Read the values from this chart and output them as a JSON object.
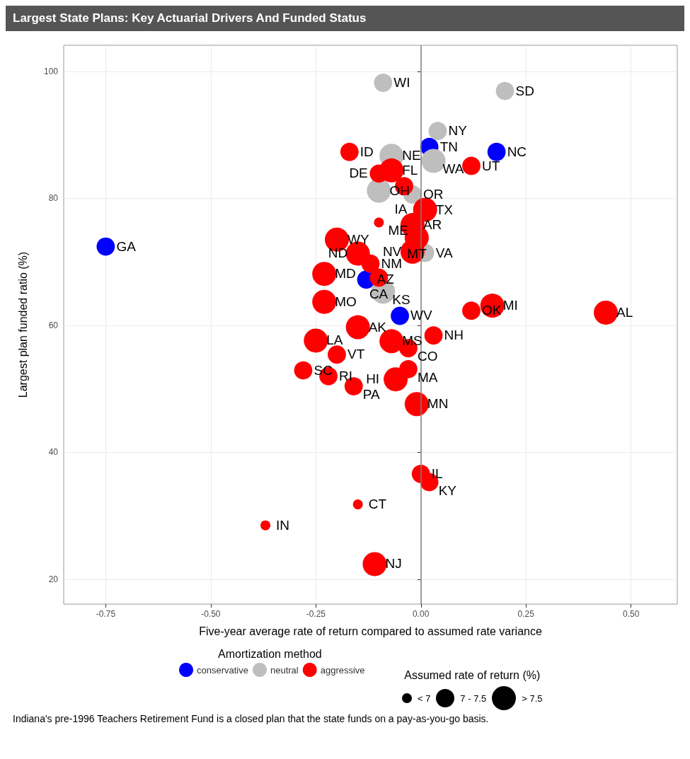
{
  "chart_data": {
    "type": "bubble",
    "title": "Largest State Plans: Key Actuarial Drivers And Funded Status",
    "xlabel": "Five-year average rate of return compared to assumed rate variance",
    "ylabel": "Largest plan funded ratio (%)",
    "legend_title": "Amortization method",
    "legend": "bottom",
    "size_legend": [
      {
        "value": 0.17,
        "label": "< 7"
      },
      {
        "value": 0.58,
        "label": "7 - 7.5"
      },
      {
        "value": 1,
        "label": "> 7.5"
      }
    ],
    "xlim": [
      -0.85,
      0.61
    ],
    "ylim": [
      16.1,
      104.1
    ],
    "xticks": [
      {
        "value": -0.75,
        "label": "-0.75"
      },
      {
        "value": -0.5,
        "label": "-0.50"
      },
      {
        "value": -0.25,
        "label": "-0.25"
      },
      {
        "value": 0,
        "label": "0.00"
      },
      {
        "value": 0.25,
        "label": "0.25"
      },
      {
        "value": 0.5,
        "label": "0.50"
      }
    ],
    "yticks": [
      20,
      40,
      60,
      80,
      100
    ],
    "grid": true,
    "marker": "circle",
    "ref_lines": [
      {
        "axis": "x",
        "value": 0,
        "color": "#7f7f7f"
      }
    ],
    "series": [
      {
        "name": "conservative",
        "color": "#0000ff",
        "x": [
          -0.75,
          0.02,
          0.18,
          -0.13,
          -0.05
        ],
        "values": [
          72.4,
          88.1,
          87.3,
          67.2,
          61.5
        ],
        "sizes": [
          0.58,
          0.58,
          0.58,
          0.58,
          0.58
        ]
      },
      {
        "name": "neutral",
        "color": "#bebebe",
        "x": [
          -0.09,
          0.2,
          0.04,
          -0.07,
          0.03,
          -0.1,
          -0.02,
          0.01,
          -0.09
        ],
        "values": [
          98.2,
          96.9,
          90.6,
          86.7,
          85.9,
          81.2,
          80.6,
          71.4,
          65.3
        ],
        "sizes": [
          0.58,
          0.58,
          0.58,
          1,
          1,
          1,
          0.58,
          0.58,
          1
        ]
      },
      {
        "name": "aggressive",
        "color": "#ff0000",
        "x": [
          -0.17,
          0.12,
          -0.07,
          -0.1,
          -0.04,
          0.01,
          -0.02,
          -0.1,
          -0.01,
          -0.02,
          -0.2,
          -0.15,
          -0.23,
          -0.12,
          -0.1,
          -0.23,
          0.17,
          0.12,
          0.44,
          -0.15,
          -0.25,
          -0.07,
          0.03,
          -0.03,
          -0.03,
          -0.06,
          -0.2,
          -0.28,
          -0.22,
          -0.16,
          -0.01,
          0.0,
          0.02,
          -0.15,
          -0.37,
          -0.11
        ],
        "values": [
          87.3,
          85.1,
          84.4,
          83.9,
          81.9,
          78.2,
          75.8,
          76.2,
          73.8,
          71.6,
          73.5,
          71.3,
          68.1,
          69.7,
          67.5,
          63.7,
          63.1,
          62.3,
          62.0,
          59.7,
          57.6,
          57.5,
          58.4,
          56.4,
          53.1,
          51.5,
          55.4,
          52.9,
          52.0,
          50.4,
          47.6,
          36.6,
          35.3,
          31.8,
          28.5,
          22.4
        ],
        "sizes": [
          0.58,
          0.58,
          1,
          0.58,
          0.58,
          1,
          1,
          0.17,
          1,
          1,
          1,
          1,
          1,
          0.58,
          0.58,
          1,
          1,
          0.58,
          1,
          1,
          1,
          1,
          0.58,
          0.58,
          0.58,
          1,
          0.58,
          0.58,
          0.58,
          0.58,
          1,
          0.58,
          0.58,
          0.17,
          0.17,
          1
        ]
      }
    ],
    "annotations": [
      {
        "text": "GA",
        "x": -0.75,
        "y": 72.4
      },
      {
        "text": "TN",
        "x": 0.02,
        "y": 88.1
      },
      {
        "text": "NC",
        "x": 0.18,
        "y": 87.3
      },
      {
        "text": "AZ",
        "x": -0.13,
        "y": 67.2
      },
      {
        "text": "WV",
        "x": -0.05,
        "y": 61.5
      },
      {
        "text": "WI",
        "x": -0.09,
        "y": 98.2
      },
      {
        "text": "SD",
        "x": 0.2,
        "y": 96.9
      },
      {
        "text": "NY",
        "x": 0.04,
        "y": 90.6
      },
      {
        "text": "NE",
        "x": -0.07,
        "y": 86.7
      },
      {
        "text": "WA",
        "x": 0.03,
        "y": 85.9
      },
      {
        "text": "OH",
        "x": -0.1,
        "y": 81.2
      },
      {
        "text": "OR",
        "x": -0.02,
        "y": 80.6
      },
      {
        "text": "VA",
        "x": 0.01,
        "y": 71.4
      },
      {
        "text": "KS",
        "x": -0.09,
        "y": 65.3
      },
      {
        "text": "ID",
        "x": -0.17,
        "y": 87.3
      },
      {
        "text": "UT",
        "x": 0.12,
        "y": 85.1
      },
      {
        "text": "FL",
        "x": -0.07,
        "y": 84.4
      },
      {
        "text": "DE",
        "x": -0.1,
        "y": 83.9
      },
      {
        "text": "IA",
        "x": -0.04,
        "y": 81.9
      },
      {
        "text": "TX",
        "x": 0.01,
        "y": 78.2
      },
      {
        "text": "AR",
        "x": -0.02,
        "y": 75.8
      },
      {
        "text": "ME",
        "x": -0.1,
        "y": 76.2
      },
      {
        "text": "MT",
        "x": -0.01,
        "y": 73.8
      },
      {
        "text": "NV",
        "x": -0.02,
        "y": 71.6
      },
      {
        "text": "WY",
        "x": -0.2,
        "y": 73.5
      },
      {
        "text": "ND",
        "x": -0.15,
        "y": 71.3
      },
      {
        "text": "MD",
        "x": -0.23,
        "y": 68.1
      },
      {
        "text": "NM",
        "x": -0.12,
        "y": 69.7
      },
      {
        "text": "CA",
        "x": -0.1,
        "y": 67.5
      },
      {
        "text": "MO",
        "x": -0.23,
        "y": 63.7
      },
      {
        "text": "MI",
        "x": 0.17,
        "y": 63.1
      },
      {
        "text": "OK",
        "x": 0.12,
        "y": 62.3
      },
      {
        "text": "AL",
        "x": 0.44,
        "y": 62.0
      },
      {
        "text": "AK",
        "x": -0.15,
        "y": 59.7
      },
      {
        "text": "LA",
        "x": -0.25,
        "y": 57.6
      },
      {
        "text": "MS",
        "x": -0.07,
        "y": 57.5
      },
      {
        "text": "NH",
        "x": 0.03,
        "y": 58.4
      },
      {
        "text": "CO",
        "x": -0.03,
        "y": 56.4
      },
      {
        "text": "MA",
        "x": -0.03,
        "y": 53.1
      },
      {
        "text": "HI",
        "x": -0.06,
        "y": 51.5
      },
      {
        "text": "VT",
        "x": -0.2,
        "y": 55.4
      },
      {
        "text": "SC",
        "x": -0.28,
        "y": 52.9
      },
      {
        "text": "RI",
        "x": -0.22,
        "y": 52.0
      },
      {
        "text": "PA",
        "x": -0.16,
        "y": 50.4
      },
      {
        "text": "MN",
        "x": -0.01,
        "y": 47.6
      },
      {
        "text": "IL",
        "x": 0.0,
        "y": 36.6
      },
      {
        "text": "KY",
        "x": 0.02,
        "y": 35.3
      },
      {
        "text": "CT",
        "x": -0.15,
        "y": 31.8
      },
      {
        "text": "IN",
        "x": -0.37,
        "y": 28.5
      },
      {
        "text": "NJ",
        "x": -0.11,
        "y": 22.4
      },
      "Assumed rate of return (%)",
      "Indiana's pre-1996 Teachers Retirement Fund is a closed plan that the state funds on a pay-as-you-go basis."
    ]
  }
}
